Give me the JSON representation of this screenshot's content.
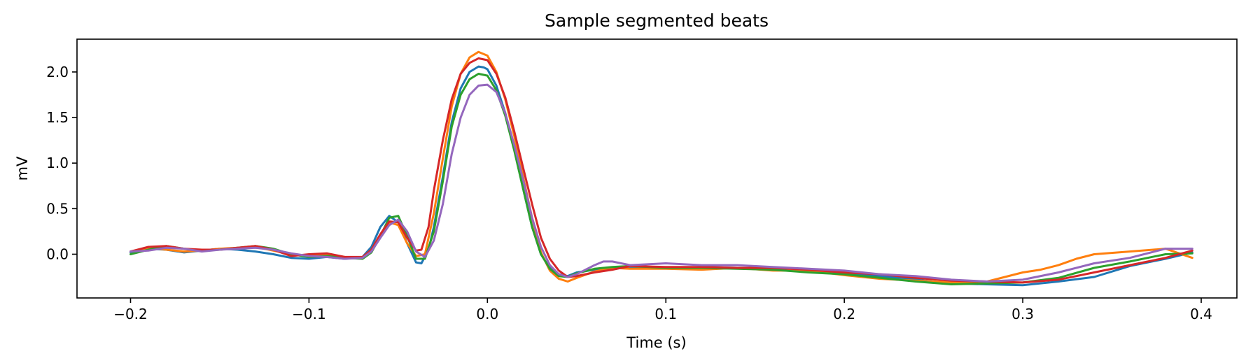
{
  "chart_data": {
    "type": "line",
    "title": "Sample segmented beats",
    "xlabel": "Time (s)",
    "ylabel": "mV",
    "xlim": [
      -0.23,
      0.42
    ],
    "ylim": [
      -0.48,
      2.36
    ],
    "grid": false,
    "xticks": [
      -0.2,
      -0.1,
      0.0,
      0.1,
      0.2,
      0.3,
      0.4
    ],
    "xtick_labels": [
      "−0.2",
      "−0.1",
      "0.0",
      "0.1",
      "0.2",
      "0.3",
      "0.4"
    ],
    "yticks": [
      0.0,
      0.5,
      1.0,
      1.5,
      2.0
    ],
    "ytick_labels": [
      "0.0",
      "0.5",
      "1.0",
      "1.5",
      "2.0"
    ],
    "series": [
      {
        "color": "#1f77b4",
        "x": [
          -0.2,
          -0.19,
          -0.18,
          -0.17,
          -0.16,
          -0.15,
          -0.14,
          -0.13,
          -0.12,
          -0.11,
          -0.1,
          -0.09,
          -0.08,
          -0.07,
          -0.065,
          -0.06,
          -0.055,
          -0.05,
          -0.045,
          -0.04,
          -0.037,
          -0.033,
          -0.03,
          -0.025,
          -0.02,
          -0.015,
          -0.01,
          -0.005,
          -0.002,
          0.0,
          0.005,
          0.01,
          0.015,
          0.02,
          0.025,
          0.03,
          0.035,
          0.04,
          0.045,
          0.05,
          0.06,
          0.07,
          0.08,
          0.1,
          0.12,
          0.14,
          0.16,
          0.18,
          0.2,
          0.22,
          0.24,
          0.26,
          0.28,
          0.3,
          0.32,
          0.34,
          0.36,
          0.38,
          0.395
        ],
        "y": [
          0.02,
          0.06,
          0.05,
          0.02,
          0.04,
          0.06,
          0.05,
          0.03,
          0.0,
          -0.04,
          -0.05,
          -0.03,
          -0.05,
          -0.03,
          0.08,
          0.3,
          0.42,
          0.35,
          0.12,
          -0.09,
          -0.1,
          0.05,
          0.3,
          0.85,
          1.45,
          1.82,
          2.0,
          2.06,
          2.05,
          2.03,
          1.85,
          1.55,
          1.15,
          0.72,
          0.3,
          0.0,
          -0.15,
          -0.22,
          -0.24,
          -0.2,
          -0.17,
          -0.15,
          -0.14,
          -0.15,
          -0.14,
          -0.15,
          -0.16,
          -0.19,
          -0.2,
          -0.24,
          -0.28,
          -0.32,
          -0.33,
          -0.34,
          -0.3,
          -0.25,
          -0.13,
          -0.05,
          0.02
        ]
      },
      {
        "color": "#ff7f0e",
        "x": [
          -0.2,
          -0.19,
          -0.18,
          -0.17,
          -0.16,
          -0.15,
          -0.14,
          -0.13,
          -0.12,
          -0.11,
          -0.1,
          -0.09,
          -0.08,
          -0.07,
          -0.065,
          -0.06,
          -0.055,
          -0.05,
          -0.045,
          -0.04,
          -0.035,
          -0.03,
          -0.025,
          -0.02,
          -0.015,
          -0.01,
          -0.005,
          0.0,
          0.005,
          0.01,
          0.015,
          0.02,
          0.025,
          0.03,
          0.035,
          0.04,
          0.045,
          0.05,
          0.06,
          0.07,
          0.08,
          0.1,
          0.12,
          0.14,
          0.16,
          0.18,
          0.2,
          0.22,
          0.24,
          0.26,
          0.28,
          0.29,
          0.3,
          0.31,
          0.32,
          0.33,
          0.34,
          0.36,
          0.38,
          0.395
        ],
        "y": [
          0.03,
          0.07,
          0.05,
          0.03,
          0.04,
          0.06,
          0.07,
          0.08,
          0.04,
          0.0,
          -0.02,
          0.0,
          -0.03,
          -0.04,
          0.05,
          0.2,
          0.35,
          0.32,
          0.12,
          -0.02,
          0.0,
          0.45,
          1.05,
          1.62,
          1.98,
          2.16,
          2.22,
          2.18,
          2.0,
          1.7,
          1.3,
          0.85,
          0.4,
          0.02,
          -0.18,
          -0.27,
          -0.3,
          -0.26,
          -0.19,
          -0.15,
          -0.16,
          -0.16,
          -0.17,
          -0.15,
          -0.18,
          -0.18,
          -0.23,
          -0.27,
          -0.29,
          -0.31,
          -0.3,
          -0.25,
          -0.2,
          -0.17,
          -0.12,
          -0.05,
          0.0,
          0.03,
          0.06,
          -0.04
        ]
      },
      {
        "color": "#2ca02c",
        "x": [
          -0.2,
          -0.19,
          -0.18,
          -0.17,
          -0.16,
          -0.15,
          -0.14,
          -0.13,
          -0.12,
          -0.11,
          -0.1,
          -0.09,
          -0.08,
          -0.07,
          -0.065,
          -0.06,
          -0.055,
          -0.05,
          -0.045,
          -0.04,
          -0.035,
          -0.03,
          -0.025,
          -0.02,
          -0.015,
          -0.01,
          -0.005,
          0.0,
          0.005,
          0.01,
          0.015,
          0.02,
          0.025,
          0.03,
          0.035,
          0.04,
          0.045,
          0.05,
          0.06,
          0.07,
          0.08,
          0.1,
          0.12,
          0.14,
          0.16,
          0.18,
          0.2,
          0.22,
          0.24,
          0.26,
          0.28,
          0.3,
          0.32,
          0.34,
          0.36,
          0.38,
          0.395
        ],
        "y": [
          0.0,
          0.05,
          0.09,
          0.06,
          0.04,
          0.05,
          0.07,
          0.09,
          0.06,
          0.0,
          -0.03,
          -0.02,
          -0.04,
          -0.05,
          0.02,
          0.2,
          0.4,
          0.42,
          0.2,
          -0.05,
          -0.05,
          0.25,
          0.8,
          1.4,
          1.75,
          1.92,
          1.98,
          1.96,
          1.8,
          1.52,
          1.14,
          0.72,
          0.3,
          0.0,
          -0.16,
          -0.24,
          -0.25,
          -0.21,
          -0.16,
          -0.14,
          -0.13,
          -0.15,
          -0.15,
          -0.16,
          -0.17,
          -0.2,
          -0.22,
          -0.26,
          -0.3,
          -0.33,
          -0.32,
          -0.31,
          -0.26,
          -0.15,
          -0.08,
          0.0,
          0.01
        ]
      },
      {
        "color": "#d62728",
        "x": [
          -0.2,
          -0.19,
          -0.18,
          -0.17,
          -0.16,
          -0.15,
          -0.14,
          -0.13,
          -0.12,
          -0.11,
          -0.1,
          -0.09,
          -0.08,
          -0.07,
          -0.065,
          -0.06,
          -0.055,
          -0.05,
          -0.045,
          -0.04,
          -0.037,
          -0.033,
          -0.03,
          -0.025,
          -0.02,
          -0.015,
          -0.01,
          -0.005,
          0.0,
          0.005,
          0.01,
          0.015,
          0.02,
          0.025,
          0.03,
          0.035,
          0.04,
          0.045,
          0.05,
          0.06,
          0.07,
          0.08,
          0.1,
          0.12,
          0.14,
          0.16,
          0.18,
          0.2,
          0.22,
          0.24,
          0.26,
          0.28,
          0.3,
          0.32,
          0.34,
          0.36,
          0.38,
          0.395
        ],
        "y": [
          0.03,
          0.08,
          0.09,
          0.06,
          0.05,
          0.05,
          0.07,
          0.09,
          0.05,
          -0.02,
          0.0,
          0.01,
          -0.03,
          -0.03,
          0.05,
          0.22,
          0.36,
          0.35,
          0.18,
          0.04,
          0.05,
          0.3,
          0.7,
          1.25,
          1.7,
          1.98,
          2.1,
          2.15,
          2.13,
          1.98,
          1.72,
          1.35,
          0.95,
          0.55,
          0.18,
          -0.05,
          -0.18,
          -0.25,
          -0.24,
          -0.2,
          -0.17,
          -0.13,
          -0.14,
          -0.14,
          -0.15,
          -0.15,
          -0.17,
          -0.2,
          -0.22,
          -0.26,
          -0.29,
          -0.3,
          -0.31,
          -0.28,
          -0.2,
          -0.12,
          -0.04,
          0.04
        ]
      },
      {
        "color": "#9467bd",
        "x": [
          -0.2,
          -0.19,
          -0.18,
          -0.17,
          -0.16,
          -0.15,
          -0.14,
          -0.13,
          -0.12,
          -0.11,
          -0.1,
          -0.09,
          -0.08,
          -0.07,
          -0.065,
          -0.06,
          -0.055,
          -0.05,
          -0.045,
          -0.04,
          -0.035,
          -0.03,
          -0.025,
          -0.02,
          -0.015,
          -0.01,
          -0.005,
          0.0,
          0.005,
          0.01,
          0.015,
          0.02,
          0.025,
          0.03,
          0.035,
          0.04,
          0.045,
          0.05,
          0.06,
          0.065,
          0.07,
          0.08,
          0.1,
          0.12,
          0.14,
          0.16,
          0.18,
          0.2,
          0.22,
          0.24,
          0.26,
          0.28,
          0.3,
          0.32,
          0.34,
          0.36,
          0.38,
          0.395
        ],
        "y": [
          0.03,
          0.04,
          0.07,
          0.06,
          0.03,
          0.05,
          0.06,
          0.07,
          0.05,
          0.01,
          -0.02,
          -0.03,
          -0.05,
          -0.04,
          0.03,
          0.18,
          0.32,
          0.38,
          0.25,
          0.03,
          -0.03,
          0.15,
          0.55,
          1.1,
          1.5,
          1.75,
          1.85,
          1.86,
          1.78,
          1.55,
          1.2,
          0.82,
          0.4,
          0.08,
          -0.12,
          -0.22,
          -0.25,
          -0.22,
          -0.12,
          -0.08,
          -0.08,
          -0.12,
          -0.1,
          -0.12,
          -0.12,
          -0.14,
          -0.16,
          -0.18,
          -0.22,
          -0.24,
          -0.28,
          -0.3,
          -0.28,
          -0.2,
          -0.1,
          -0.04,
          0.06,
          0.06
        ]
      }
    ]
  }
}
